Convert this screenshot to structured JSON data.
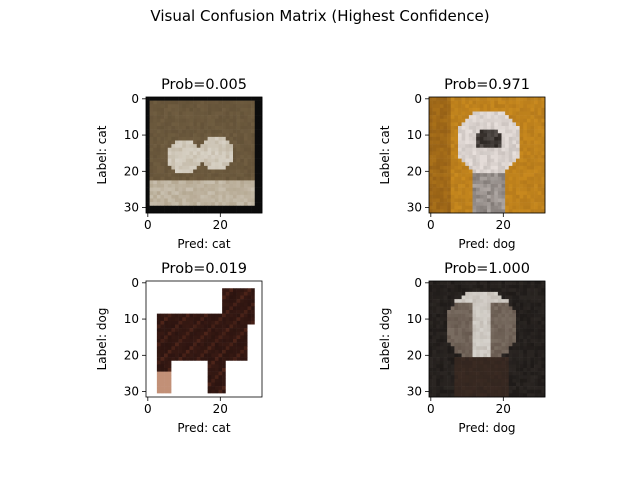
{
  "figure": {
    "suptitle": "Visual Confusion Matrix (Highest Confidence)"
  },
  "chart_data": [
    {
      "type": "image",
      "title": "Prob=0.005",
      "xlabel": "Pred: cat",
      "ylabel": "Label: cat",
      "xticks": [
        0,
        20
      ],
      "yticks": [
        0,
        10,
        20,
        30
      ],
      "xlim": [
        -0.5,
        31.5
      ],
      "ylim": [
        31.5,
        -0.5
      ],
      "image_size": [
        32,
        32
      ],
      "palette": [
        "#0c0c0c",
        "#5b4a32",
        "#8a7552",
        "#d8d2c6"
      ]
    },
    {
      "type": "image",
      "title": "Prob=0.971",
      "xlabel": "Pred: dog",
      "ylabel": "Label: cat",
      "xticks": [
        0,
        20
      ],
      "yticks": [
        0,
        10,
        20,
        30
      ],
      "xlim": [
        -0.5,
        31.5
      ],
      "ylim": [
        31.5,
        -0.5
      ],
      "image_size": [
        32,
        32
      ],
      "palette": [
        "#c98a1e",
        "#7a4a12",
        "#e8e0dc",
        "#2a2420"
      ]
    },
    {
      "type": "image",
      "title": "Prob=0.019",
      "xlabel": "Pred: cat",
      "ylabel": "Label: dog",
      "xticks": [
        0,
        20
      ],
      "yticks": [
        0,
        10,
        20,
        30
      ],
      "xlim": [
        -0.5,
        31.5
      ],
      "ylim": [
        31.5,
        -0.5
      ],
      "image_size": [
        32,
        32
      ],
      "palette": [
        "#ffffff",
        "#2c1410",
        "#5a2a1c",
        "#a8603c"
      ]
    },
    {
      "type": "image",
      "title": "Prob=1.000",
      "xlabel": "Pred: dog",
      "ylabel": "Label: dog",
      "xticks": [
        0,
        20
      ],
      "yticks": [
        0,
        10,
        20,
        30
      ],
      "xlim": [
        -0.5,
        31.5
      ],
      "ylim": [
        31.5,
        -0.5
      ],
      "image_size": [
        32,
        32
      ],
      "palette": [
        "#1e1a18",
        "#d6d2cc",
        "#3a2a22",
        "#8a7e72"
      ]
    }
  ]
}
